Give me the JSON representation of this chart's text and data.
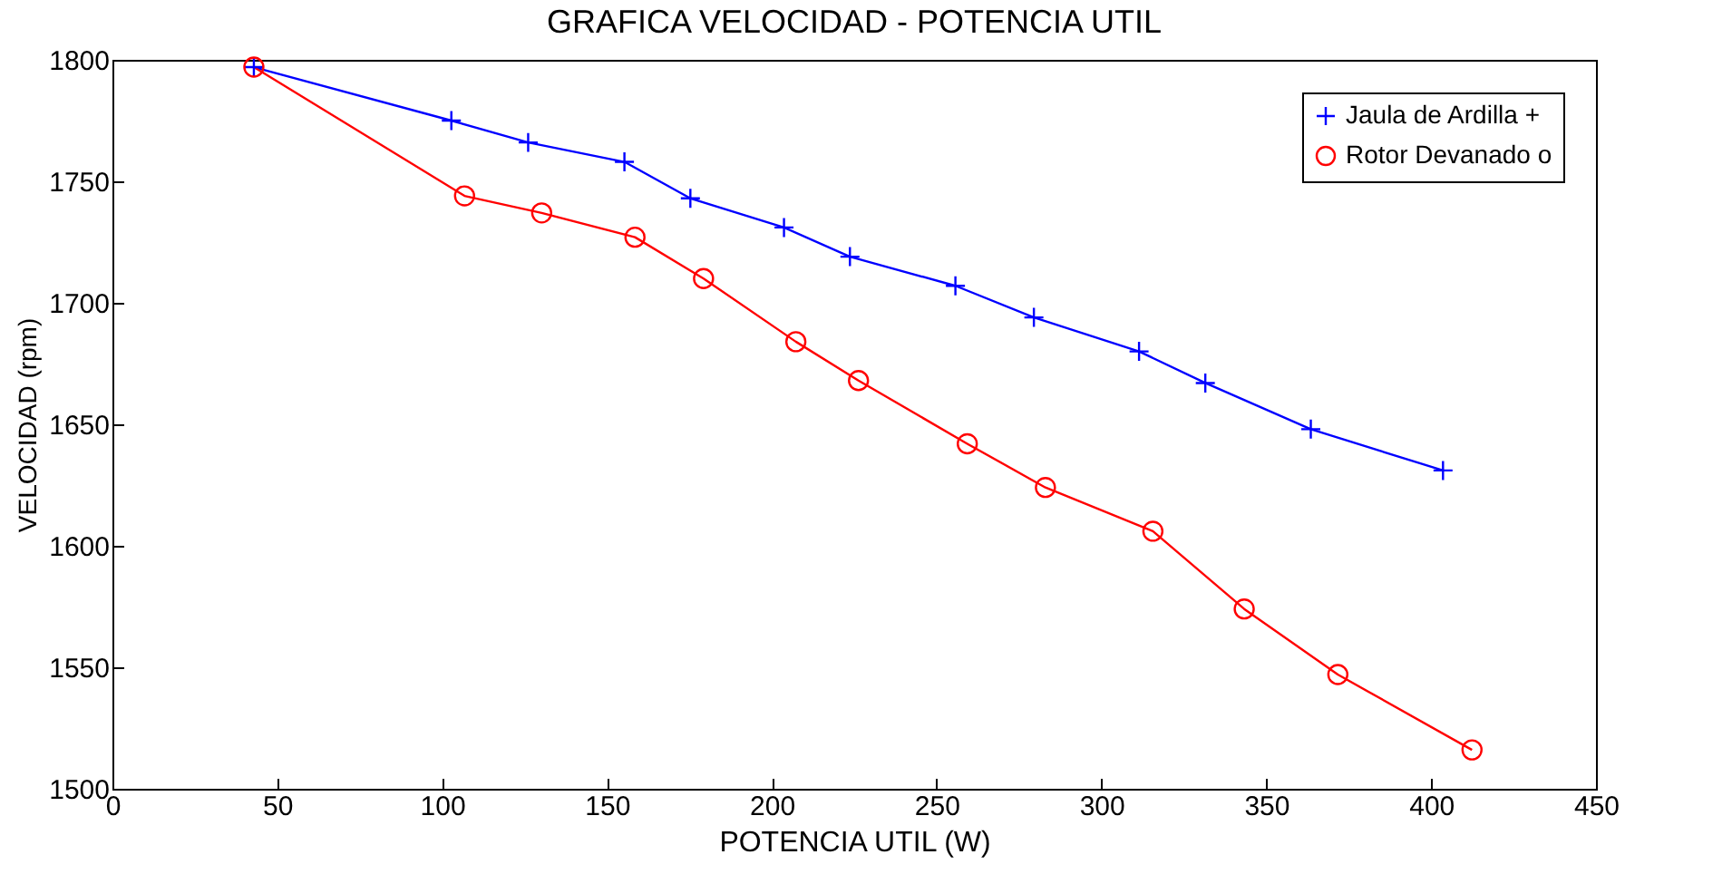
{
  "chart_data": {
    "type": "line",
    "title": "GRAFICA VELOCIDAD - POTENCIA UTIL",
    "xlabel": "POTENCIA UTIL (W)",
    "ylabel": "VELOCIDAD (rpm)",
    "xlim": [
      0,
      450
    ],
    "xticks": [
      0,
      50,
      100,
      150,
      200,
      250,
      300,
      350,
      400,
      450
    ],
    "ylim": [
      1500,
      1800
    ],
    "yticks": [
      1500,
      1550,
      1600,
      1650,
      1700,
      1750,
      1800
    ],
    "grid": false,
    "legend": "top right",
    "line_style": "solid",
    "series": [
      {
        "name": "Jaula de Ardilla +",
        "color": "#0000ff",
        "marker": "cross",
        "x": [
          42.9,
          102.8,
          126.1,
          155.3,
          175.3,
          203.7,
          223.7,
          255.7,
          279.5,
          311.4,
          331.5,
          363.5,
          403.6
        ],
        "values": [
          1797,
          1775,
          1766,
          1758,
          1743,
          1731,
          1719,
          1707,
          1694,
          1680,
          1667,
          1648,
          1631
        ]
      },
      {
        "name": "Rotor Devanado o",
        "color": "#ff0000",
        "marker": "circle",
        "x": [
          42.9,
          106.8,
          130.2,
          158.5,
          179.3,
          207.3,
          226.3,
          259.3,
          283,
          315.6,
          343.3,
          371.7,
          412.4
        ],
        "values": [
          1797,
          1744,
          1737,
          1727,
          1710,
          1684,
          1668,
          1642,
          1624,
          1606,
          1574,
          1547,
          1516
        ]
      }
    ]
  }
}
